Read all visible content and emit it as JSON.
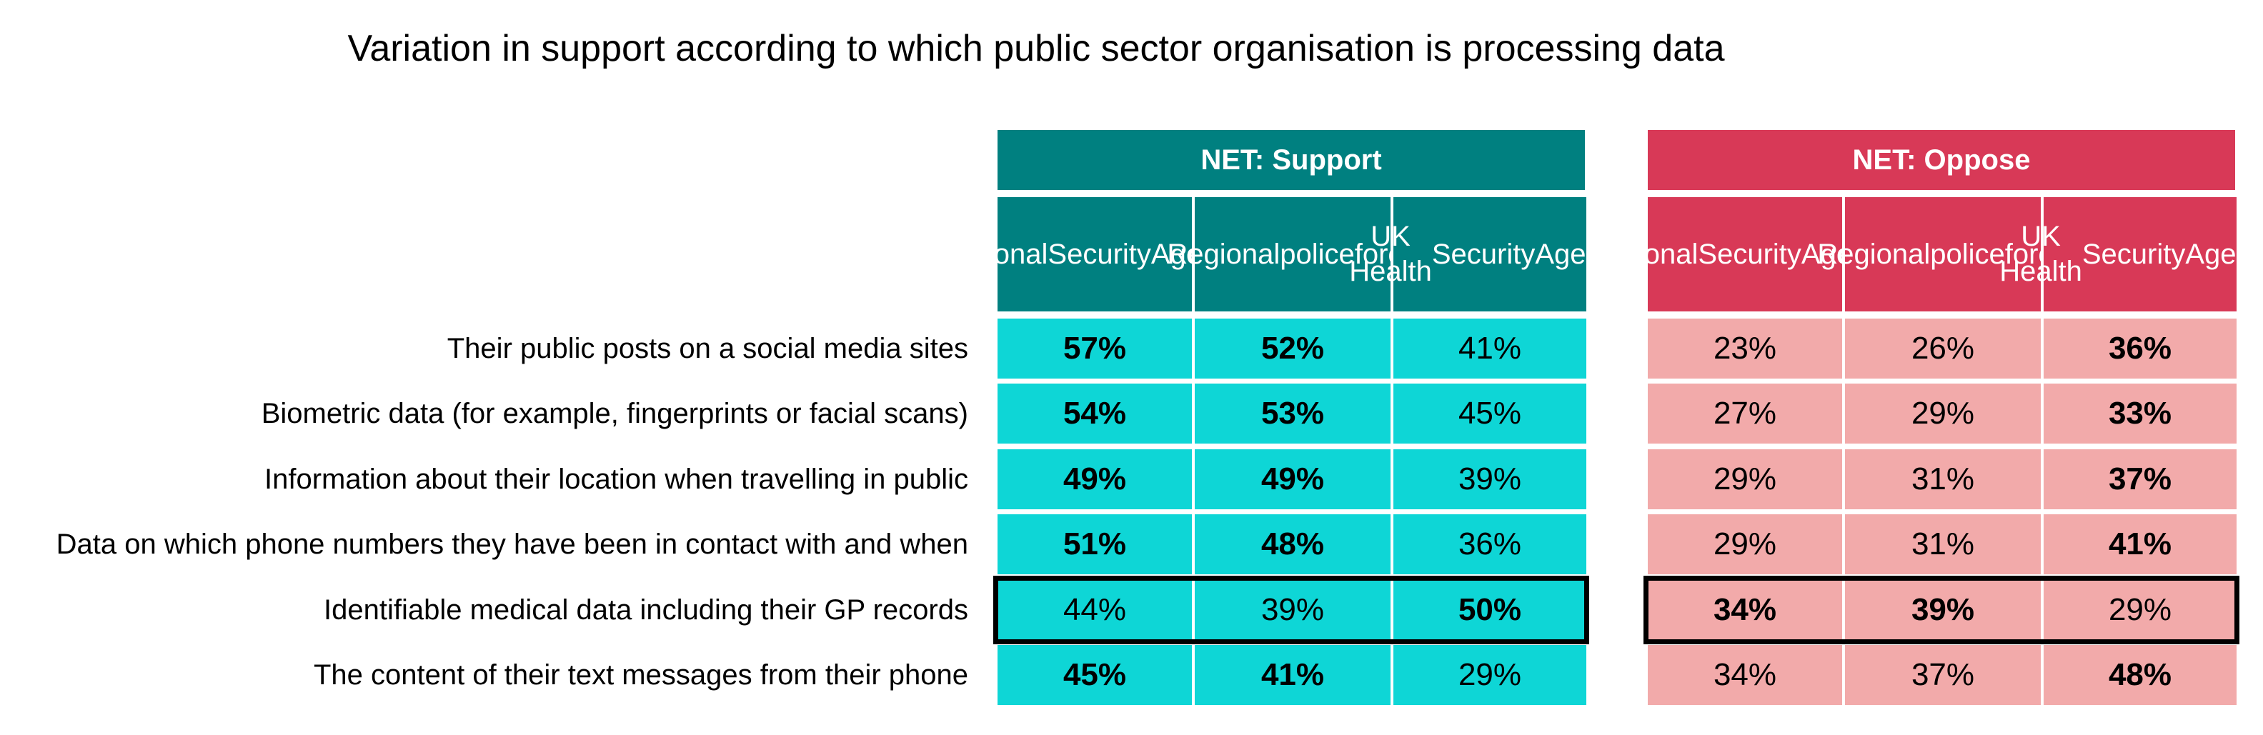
{
  "chart_data": {
    "type": "table",
    "title": "Variation in support according to which public sector organisation is processing data",
    "groups": [
      {
        "name": "NET: Support",
        "header_color": "#008080",
        "cell_color": "#0ed6d6",
        "columns": [
          "National Security Agency",
          "Regional police force",
          "UK Health Security Agency"
        ]
      },
      {
        "name": "NET: Oppose",
        "header_color": "#d83957",
        "cell_color": "#f2aaaa",
        "columns": [
          "National Security Agency",
          "Regional police force",
          "UK Health Security Agency"
        ]
      }
    ],
    "column_header_lines": [
      [
        "National",
        "Security",
        "Agency"
      ],
      [
        "Regional",
        "police",
        "force"
      ],
      [
        "UK Health",
        "Security",
        "Agency"
      ]
    ],
    "rows": [
      {
        "label": "Their public posts on a social media sites",
        "support": [
          "57%",
          "52%",
          "41%"
        ],
        "support_bold": [
          true,
          true,
          false
        ],
        "oppose": [
          "23%",
          "26%",
          "36%"
        ],
        "oppose_bold": [
          false,
          false,
          true
        ],
        "highlighted": false
      },
      {
        "label": "Biometric data (for example, fingerprints or facial scans)",
        "support": [
          "54%",
          "53%",
          "45%"
        ],
        "support_bold": [
          true,
          true,
          false
        ],
        "oppose": [
          "27%",
          "29%",
          "33%"
        ],
        "oppose_bold": [
          false,
          false,
          true
        ],
        "highlighted": false
      },
      {
        "label": "Information about their location when travelling in public",
        "support": [
          "49%",
          "49%",
          "39%"
        ],
        "support_bold": [
          true,
          true,
          false
        ],
        "oppose": [
          "29%",
          "31%",
          "37%"
        ],
        "oppose_bold": [
          false,
          false,
          true
        ],
        "highlighted": false
      },
      {
        "label": "Data on which phone numbers they have been in contact with and when",
        "support": [
          "51%",
          "48%",
          "36%"
        ],
        "support_bold": [
          true,
          true,
          false
        ],
        "oppose": [
          "29%",
          "31%",
          "41%"
        ],
        "oppose_bold": [
          false,
          false,
          true
        ],
        "highlighted": false
      },
      {
        "label": "Identifiable medical data including their GP records",
        "support": [
          "44%",
          "39%",
          "50%"
        ],
        "support_bold": [
          false,
          false,
          true
        ],
        "oppose": [
          "34%",
          "39%",
          "29%"
        ],
        "oppose_bold": [
          true,
          true,
          false
        ],
        "highlighted": true
      },
      {
        "label": "The content of their text messages from their phone",
        "support": [
          "45%",
          "41%",
          "29%"
        ],
        "support_bold": [
          true,
          true,
          false
        ],
        "oppose": [
          "34%",
          "37%",
          "48%"
        ],
        "oppose_bold": [
          false,
          false,
          true
        ],
        "highlighted": false
      }
    ]
  }
}
